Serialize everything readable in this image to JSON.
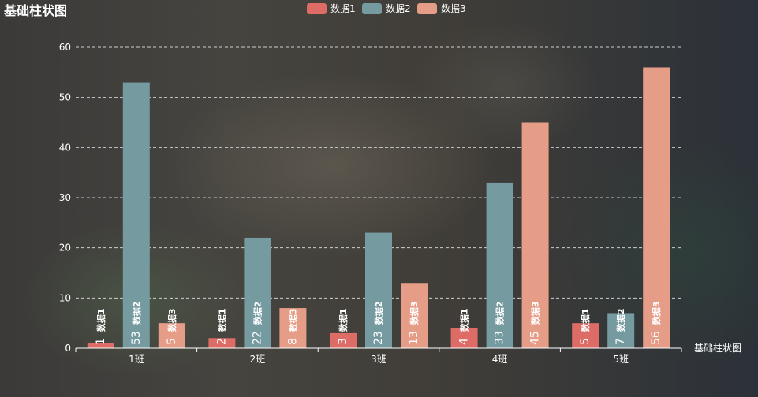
{
  "chart_data": {
    "type": "bar",
    "title": "基础柱状图",
    "xlabel": "基础柱状图",
    "ylabel": "",
    "categories": [
      "1班",
      "2班",
      "3班",
      "4班",
      "5班"
    ],
    "series": [
      {
        "name": "数据1",
        "color": "#dd6b66",
        "values": [
          1,
          2,
          3,
          4,
          5
        ]
      },
      {
        "name": "数据2",
        "color": "#759aa0",
        "values": [
          53,
          22,
          23,
          33,
          7
        ]
      },
      {
        "name": "数据3",
        "color": "#e69d87",
        "values": [
          5,
          8,
          13,
          45,
          56
        ]
      }
    ],
    "ylim": [
      0,
      60
    ],
    "yticks": [
      0,
      10,
      20,
      30,
      40,
      50,
      60
    ],
    "grid": true,
    "legend": "top-center"
  }
}
